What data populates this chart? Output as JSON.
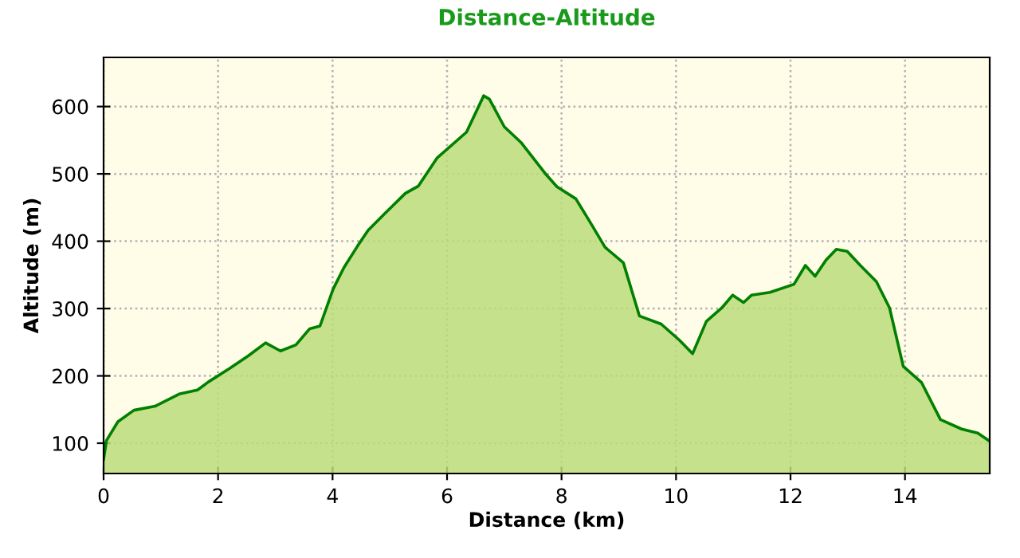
{
  "chart_data": {
    "type": "area",
    "title": "Distance-Altitude",
    "xlabel": "Distance (km)",
    "ylabel": "Altitude (m)",
    "x": [
      0,
      0.05,
      0.25,
      0.53,
      0.9,
      1.32,
      1.64,
      1.83,
      2.2,
      2.53,
      2.83,
      3.09,
      3.36,
      3.6,
      3.78,
      4.01,
      4.2,
      4.43,
      4.62,
      4.9,
      5.27,
      5.5,
      5.83,
      6.34,
      6.64,
      6.74,
      7.0,
      7.3,
      7.74,
      7.92,
      8.25,
      8.48,
      8.76,
      9.08,
      9.36,
      9.74,
      10.06,
      10.29,
      10.53,
      10.8,
      10.99,
      11.18,
      11.32,
      11.64,
      12.06,
      12.26,
      12.43,
      12.62,
      12.8,
      12.99,
      13.22,
      13.5,
      13.73,
      13.97,
      14.29,
      14.62,
      14.99,
      15.27,
      15.48
    ],
    "series": [
      {
        "color": "#008000",
        "values": [
          76,
          104,
          132,
          149,
          155,
          173,
          179,
          191,
          211,
          230,
          249,
          237,
          246,
          270,
          274,
          329,
          361,
          392,
          416,
          440,
          471,
          482,
          524,
          562,
          616,
          611,
          570,
          546,
          498,
          481,
          463,
          431,
          391,
          368,
          289,
          277,
          253,
          233,
          281,
          301,
          320,
          309,
          320,
          324,
          336,
          364,
          348,
          372,
          388,
          385,
          364,
          340,
          301,
          214,
          190,
          135,
          121,
          115,
          103
        ]
      }
    ],
    "xlim": [
      0,
      15.48
    ],
    "ylim": [
      55,
      673
    ],
    "xticks": [
      0,
      2,
      4,
      6,
      8,
      10,
      12,
      14
    ],
    "yticks": [
      100,
      200,
      300,
      400,
      500,
      600
    ],
    "grid": true,
    "line_style": "solid"
  }
}
